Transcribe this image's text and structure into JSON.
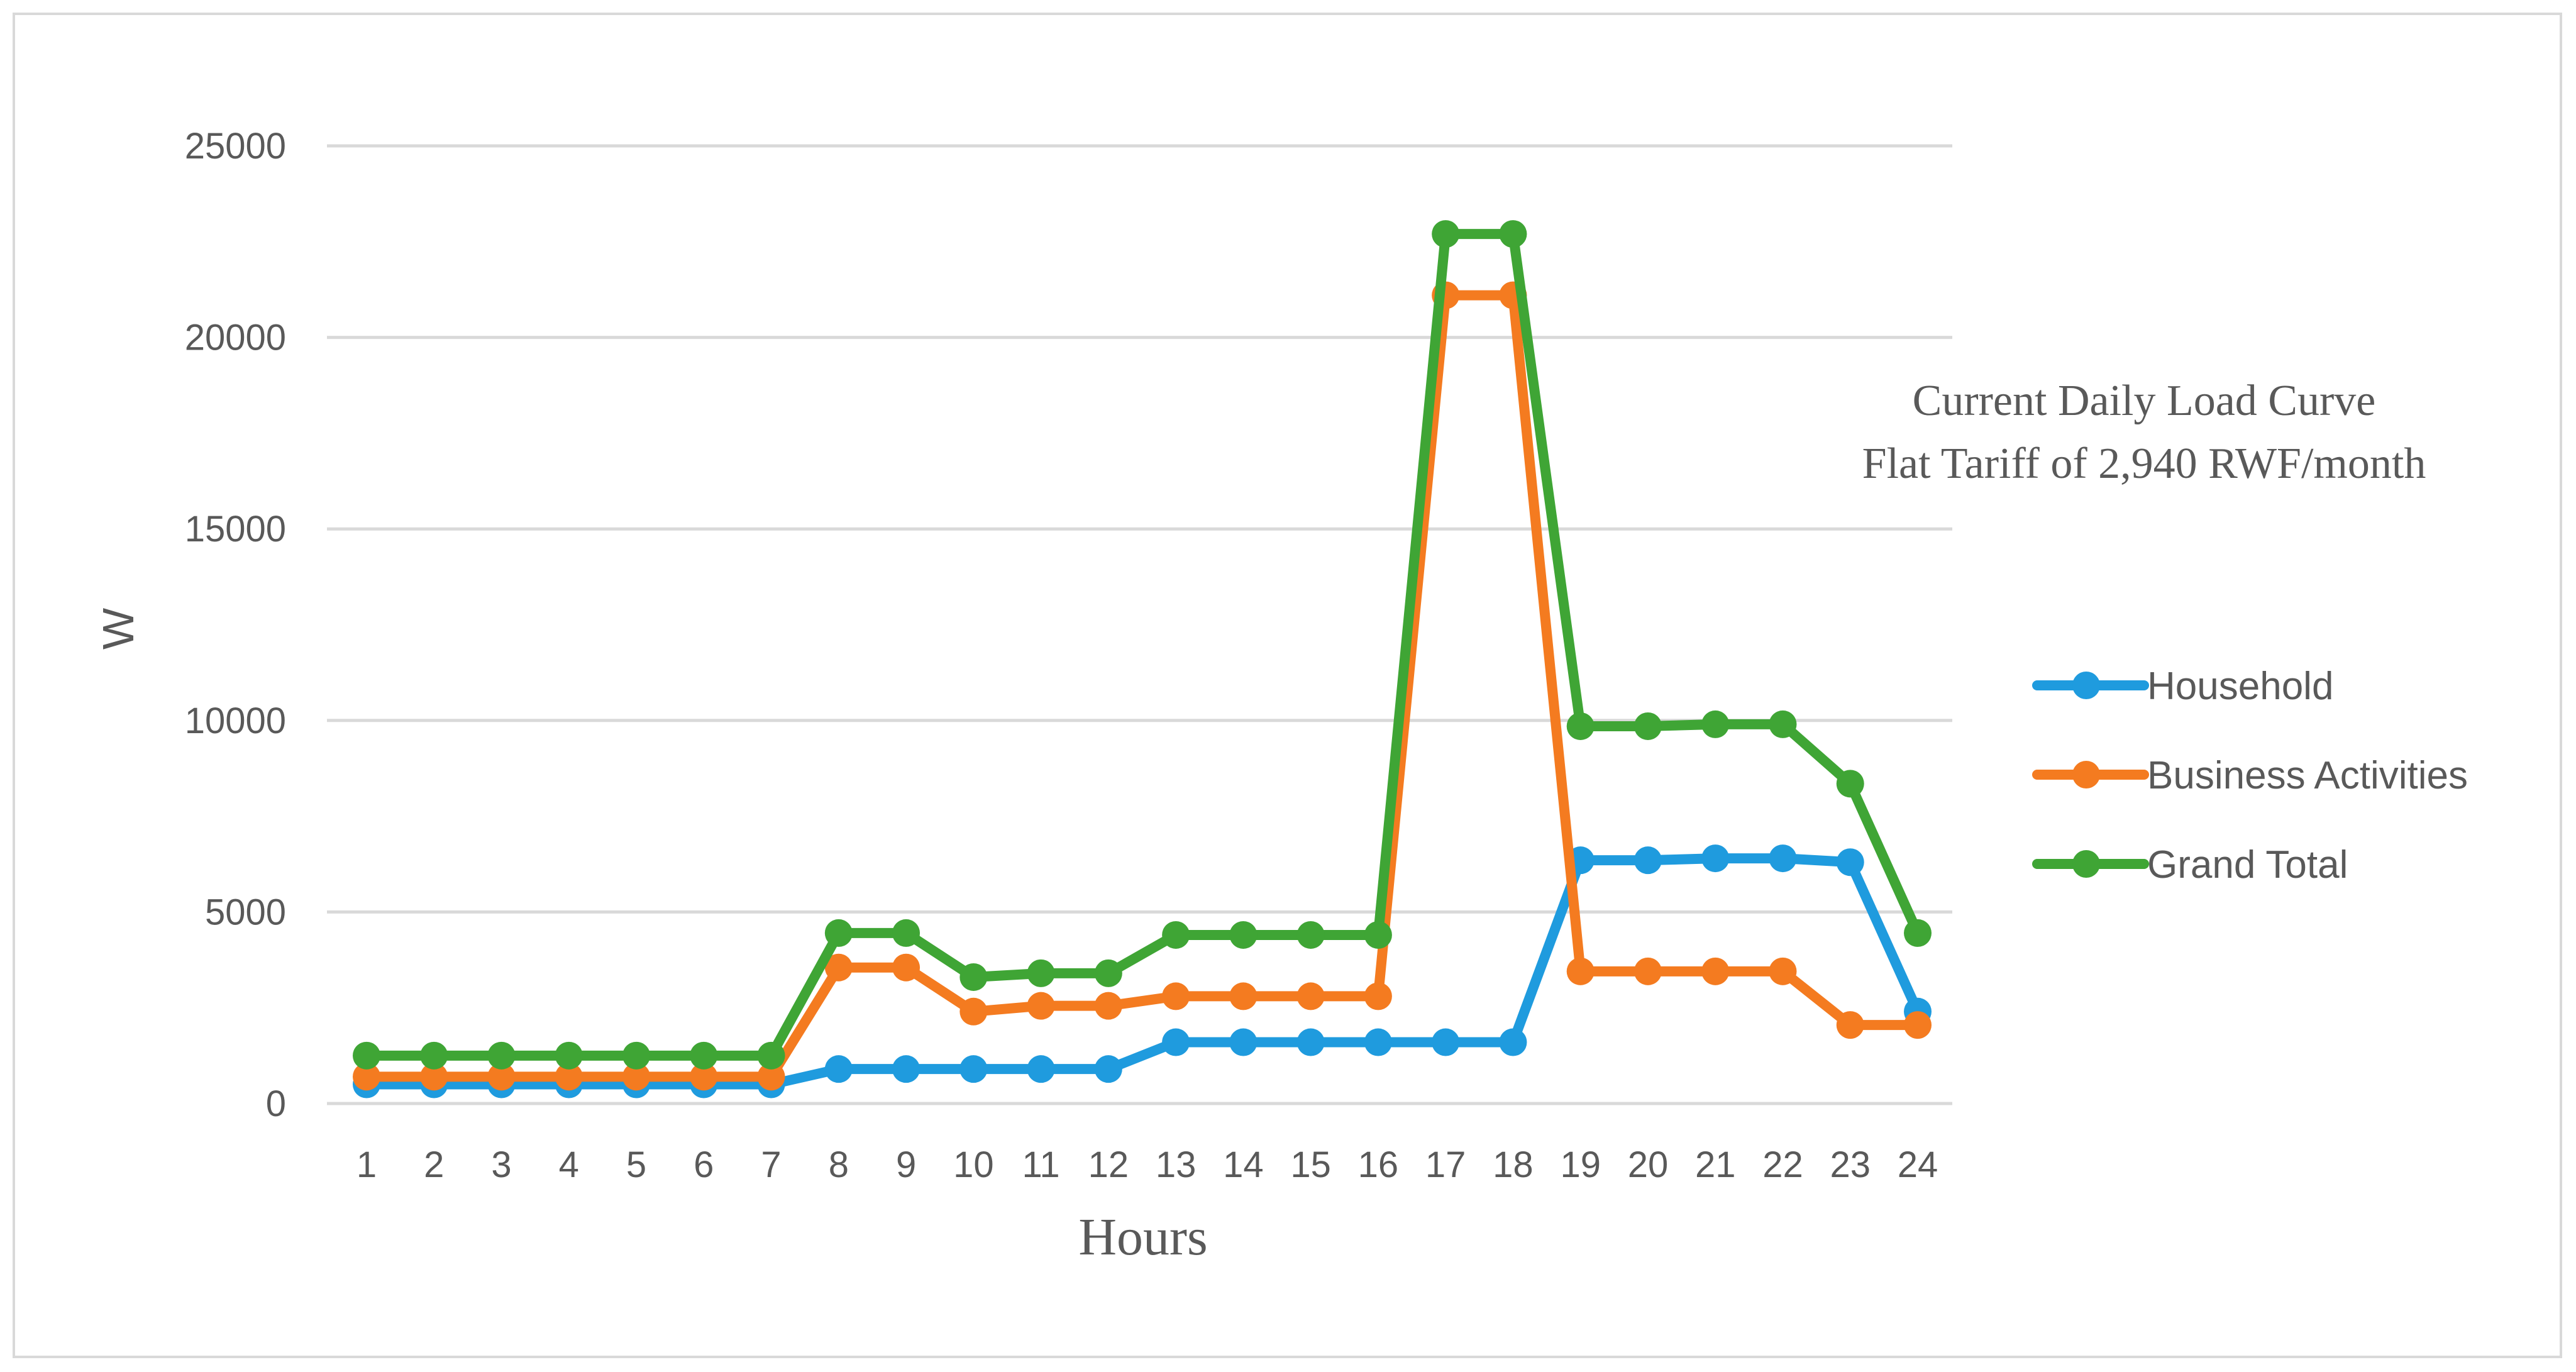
{
  "chart_data": {
    "type": "line",
    "title": "Current Daily Load Curve",
    "subtitle": "Flat Tariff of 2,940 RWF/month",
    "xlabel": "Hours",
    "ylabel": "W",
    "ylim": [
      0,
      25000
    ],
    "yticks": [
      0,
      5000,
      10000,
      15000,
      20000,
      25000
    ],
    "grid": true,
    "legend_position": "right",
    "x": [
      1,
      2,
      3,
      4,
      5,
      6,
      7,
      8,
      9,
      10,
      11,
      12,
      13,
      14,
      15,
      16,
      17,
      18,
      19,
      20,
      21,
      22,
      23,
      24
    ],
    "series": [
      {
        "name": "Household",
        "color": "#1f9bde",
        "values": [
          500,
          500,
          500,
          500,
          500,
          500,
          500,
          900,
          900,
          900,
          900,
          900,
          1600,
          1600,
          1600,
          1600,
          1600,
          1600,
          6350,
          6350,
          6400,
          6400,
          6300,
          2400
        ]
      },
      {
        "name": "Business Activities",
        "color": "#f47b20",
        "values": [
          700,
          700,
          700,
          700,
          700,
          700,
          700,
          3550,
          3550,
          2400,
          2550,
          2550,
          2800,
          2800,
          2800,
          2800,
          21100,
          21100,
          3450,
          3450,
          3450,
          3450,
          2050,
          2050
        ]
      },
      {
        "name": "Grand Total",
        "color": "#3fa535",
        "values": [
          1250,
          1250,
          1250,
          1250,
          1250,
          1250,
          1250,
          4450,
          4450,
          3300,
          3400,
          3400,
          4400,
          4400,
          4400,
          4400,
          22700,
          22700,
          9850,
          9850,
          9900,
          9900,
          8350,
          4450
        ]
      }
    ]
  }
}
